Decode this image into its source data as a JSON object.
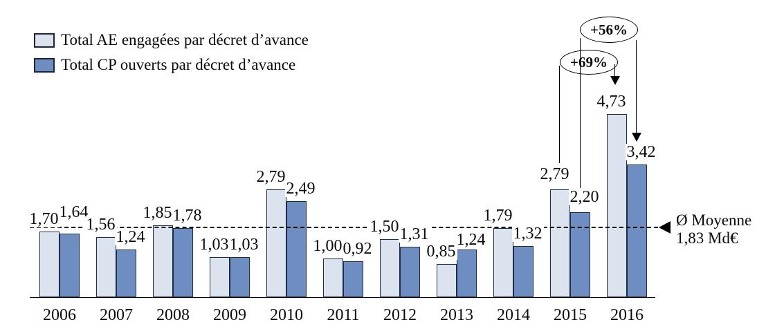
{
  "legend": {
    "items": [
      {
        "label": "Total AE engagées par décret d’avance",
        "color": "#dbe3ef"
      },
      {
        "label": "Total CP ouverts par décret d’avance",
        "color": "#6e8dc0"
      }
    ]
  },
  "average": {
    "symbol_line": "Ø Moyenne",
    "value_line": "1,83 Md€"
  },
  "annotations": [
    {
      "label": "+69%",
      "series": "AE",
      "from": "2015",
      "to": "2016"
    },
    {
      "label": "+56%",
      "series": "CP",
      "from": "2015",
      "to": "2016"
    }
  ],
  "chart_data": {
    "type": "bar",
    "title": "",
    "xlabel": "",
    "ylabel": "",
    "categories": [
      "2006",
      "2007",
      "2008",
      "2009",
      "2010",
      "2011",
      "2012",
      "2013",
      "2014",
      "2015",
      "2016"
    ],
    "series": [
      {
        "key": "ae",
        "name": "Total AE engagées par décret d’avance",
        "color": "#dbe3ef",
        "values": [
          1.7,
          1.56,
          1.85,
          1.03,
          2.79,
          1.0,
          1.5,
          0.85,
          1.79,
          2.79,
          4.73
        ],
        "label_dy": [
          0,
          0,
          0,
          0,
          0,
          0,
          0,
          0,
          0,
          -4,
          0
        ]
      },
      {
        "key": "cp",
        "name": "Total CP ouverts par décret d’avance",
        "color": "#6e8dc0",
        "values": [
          1.64,
          1.24,
          1.78,
          1.03,
          2.49,
          0.92,
          1.31,
          1.24,
          1.32,
          2.2,
          3.42
        ],
        "label_dy": [
          -13,
          0,
          0,
          0,
          0,
          0,
          0,
          4,
          0,
          -4,
          0
        ]
      }
    ],
    "average_line": {
      "label": "Ø Moyenne 1,83 Md€",
      "value": 1.83
    },
    "annotations": [
      {
        "label": "+69%",
        "series": "AE",
        "from": "2015",
        "to": "2016"
      },
      {
        "label": "+56%",
        "series": "CP",
        "from": "2015",
        "to": "2016"
      }
    ],
    "ylim": [
      0,
      5
    ],
    "grid": false,
    "legend_position": "top-left",
    "value_label_format": "comma-decimal"
  }
}
